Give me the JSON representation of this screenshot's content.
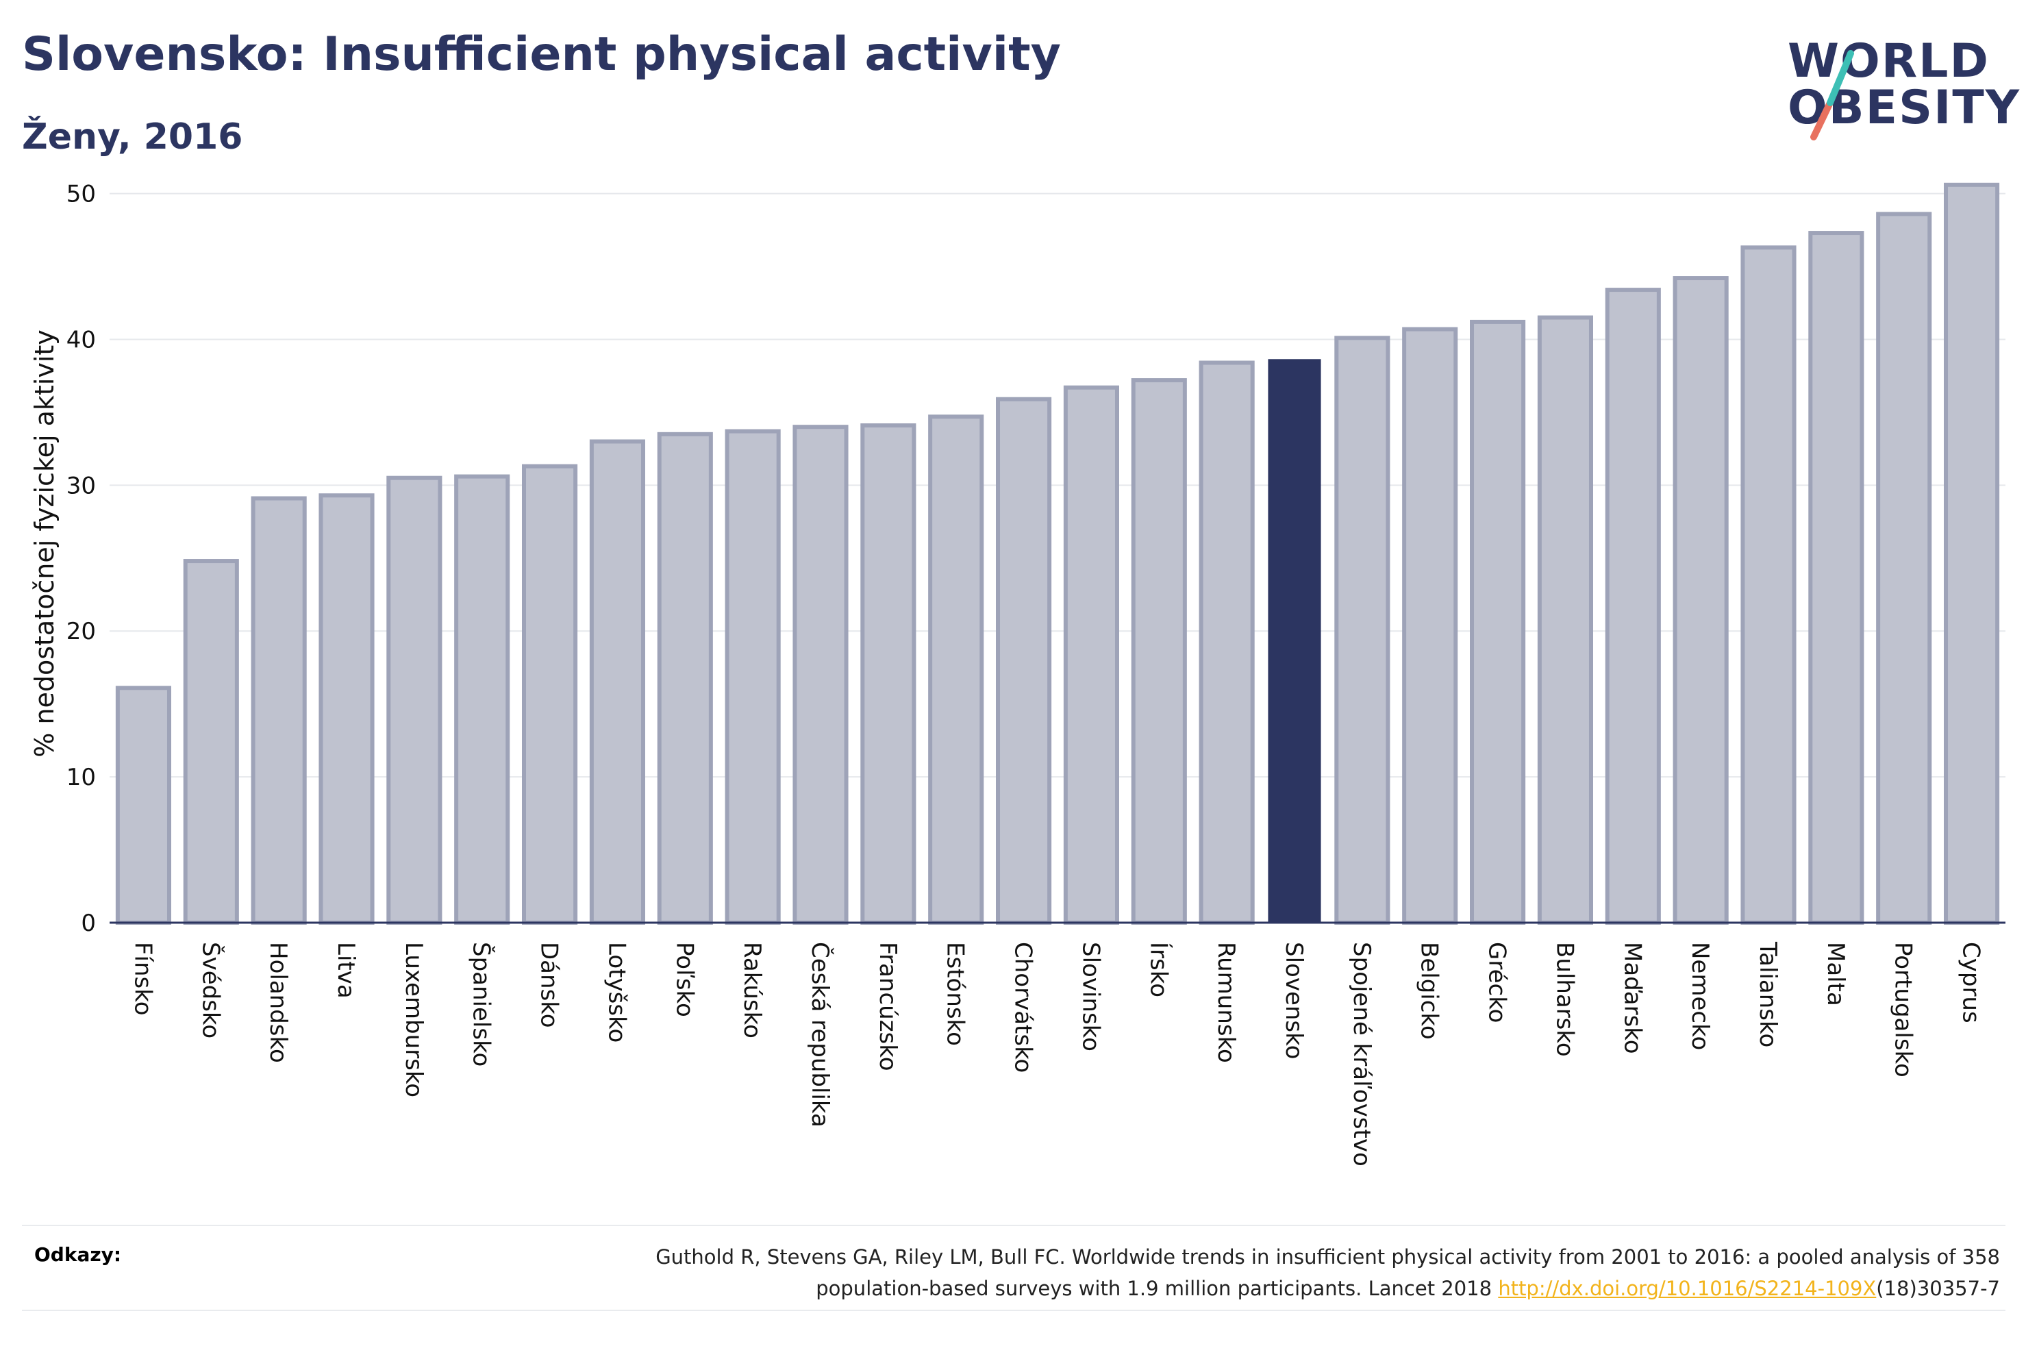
{
  "title": "Slovensko: Insufficient physical activity",
  "subtitle": "Ženy, 2016",
  "logo": {
    "line1": "WORLD",
    "line2": "OBESITY"
  },
  "colors": {
    "bar": "#bfc2cf",
    "bar_stroke": "#9ea3b8",
    "highlight": "#2c3561",
    "title": "#2c3561",
    "link": "#f2b31b",
    "logo_teal": "#3dbfb5",
    "logo_coral": "#e8715f"
  },
  "chart_data": {
    "type": "bar",
    "ylabel": "% nedostatočnej fyzickej aktivity",
    "xlabel": "",
    "ylim": [
      0,
      52
    ],
    "yticks": [
      0,
      10,
      20,
      30,
      40,
      50
    ],
    "grid": true,
    "highlight": "Slovensko",
    "categories": [
      "Fínsko",
      "Švédsko",
      "Holandsko",
      "Litva",
      "Luxembursko",
      "Španielsko",
      "Dánsko",
      "Lotyšsko",
      "Poľsko",
      "Rakúsko",
      "Česká republika",
      "Francúzsko",
      "Estónsko",
      "Chorvátsko",
      "Slovinsko",
      "Írsko",
      "Rumunsko",
      "Slovensko",
      "Spojené kráľovstvo",
      "Belgicko",
      "Grécko",
      "Bulharsko",
      "Maďarsko",
      "Nemecko",
      "Taliansko",
      "Malta",
      "Portugalsko",
      "Cyprus"
    ],
    "values": [
      16.1,
      24.8,
      29.1,
      29.3,
      30.5,
      30.6,
      31.3,
      33.0,
      33.5,
      33.7,
      34.0,
      34.1,
      34.7,
      35.9,
      36.7,
      37.2,
      38.4,
      38.6,
      40.1,
      40.7,
      41.2,
      41.5,
      43.4,
      44.2,
      46.3,
      47.3,
      48.6,
      50.6
    ]
  },
  "references": {
    "label": "Odkazy:",
    "line1": "Guthold R, Stevens GA, Riley LM, Bull FC. Worldwide trends in insufficient physical activity from 2001 to 2016: a pooled analysis of 358",
    "line2_before": "population-based surveys with 1.9 million participants. Lancet 2018 ",
    "link": "http://dx.doi.org/10.1016/S2214-109X",
    "line2_after": "(18)30357-7"
  }
}
